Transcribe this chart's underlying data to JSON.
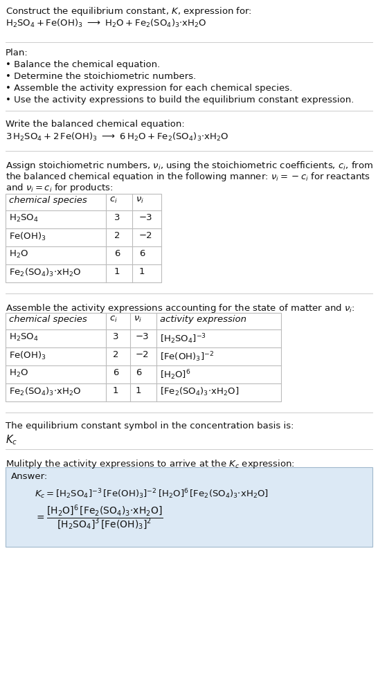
{
  "title_line1": "Construct the equilibrium constant, $K$, expression for:",
  "title_line2_plain": "H₂SO₄ + Fe(OH)₃  ⟶  H₂O + Fe₂(SO₄)₃·xH₂O",
  "plan_header": "Plan:",
  "plan_items": [
    "• Balance the chemical equation.",
    "• Determine the stoichiometric numbers.",
    "• Assemble the activity expression for each chemical species.",
    "• Use the activity expressions to build the equilibrium constant expression."
  ],
  "balanced_header": "Write the balanced chemical equation:",
  "balanced_eq": "3 H₂SO₄ + 2 Fe(OH)₃  ⟶  6 H₂O + Fe₂(SO₄)₃·xH₂O",
  "stoich_para": "Assign stoichiometric numbers, νᵢ, using the stoichiometric coefficients, cᵢ, from\nthe balanced chemical equation in the following manner: νᵢ = −cᵢ for reactants\nand νᵢ = cᵢ for products:",
  "table1_headers": [
    "chemical species",
    "ci",
    "vi"
  ],
  "table1_rows": [
    [
      "H₂SO₄",
      "3",
      "−3"
    ],
    [
      "Fe(OH)₃",
      "2",
      "−2"
    ],
    [
      "H₂O",
      "6",
      "6"
    ],
    [
      "Fe₂(SO₄)₃·xH₂O",
      "1",
      "1"
    ]
  ],
  "activity_header": "Assemble the activity expressions accounting for the state of matter and νᵢ:",
  "table2_headers": [
    "chemical species",
    "ci",
    "vi",
    "activity expression"
  ],
  "table2_rows": [
    [
      "H₂SO₄",
      "3",
      "−3",
      "[H₂SO₄]⁻³"
    ],
    [
      "Fe(OH)₃",
      "2",
      "−2",
      "[Fe(OH)₃]⁻²"
    ],
    [
      "H₂O",
      "6",
      "6",
      "[H₂O]⁶"
    ],
    [
      "Fe₂(SO₄)₃·xH₂O",
      "1",
      "1",
      "[Fe₂(SO₄)₃·xH₂O]"
    ]
  ],
  "kc_header": "The equilibrium constant symbol in the concentration basis is:",
  "kc_symbol": "Kc",
  "multiply_header": "Mulitply the activity expressions to arrive at the Kc expression:",
  "answer_label": "Answer:",
  "answer_line1": "Kc = [H₂SO₄]⁻³ [Fe(OH)₃]⁻² [H₂O]⁶ [Fe₂(SO₄)₃·xH₂O]",
  "answer_eq_line": "     [H₂O]⁶ [Fe₂(SO₄)₃·xH₂O]",
  "answer_denom": "  [H₂SO₄]³ [Fe(OH)₃]²",
  "bg_color": "#ffffff",
  "table_border": "#bbbbbb",
  "answer_bg": "#dce9f5",
  "answer_border": "#a0b8cc",
  "sep_color": "#cccccc",
  "text_color": "#111111"
}
